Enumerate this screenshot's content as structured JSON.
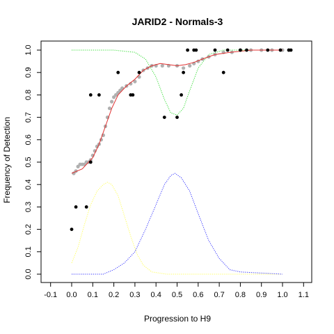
{
  "chart_data": {
    "type": "scatter",
    "title": "JARID2 - Normals-3",
    "xlabel": "Progression to H9",
    "ylabel": "Frequency of Detection",
    "xlim": [
      -0.15,
      1.15
    ],
    "ylim": [
      -0.04,
      1.04
    ],
    "x_ticks": [
      "-0.1",
      "0.0",
      "0.1",
      "0.2",
      "0.3",
      "0.4",
      "0.5",
      "0.6",
      "0.7",
      "0.8",
      "0.9",
      "1.0",
      "1.1"
    ],
    "y_ticks": [
      "0.0",
      "0.1",
      "0.2",
      "0.3",
      "0.4",
      "0.5",
      "0.6",
      "0.7",
      "0.8",
      "0.9",
      "1.0"
    ],
    "grid": false,
    "colors": {
      "observed_points": "#000000",
      "smoothed_points": "#b0b0b0",
      "fit_line": "#e03030",
      "green_curve": "#33dd33",
      "yellow_curve": "#ffff55",
      "blue_curve": "#3333ff"
    },
    "series": [
      {
        "style": "black points",
        "points": [
          [
            0.0,
            0.2
          ],
          [
            0.02,
            0.3
          ],
          [
            0.07,
            0.3
          ],
          [
            0.09,
            0.8
          ],
          [
            0.13,
            0.8
          ],
          [
            0.22,
            0.9
          ],
          [
            0.28,
            0.8
          ],
          [
            0.29,
            0.8
          ],
          [
            0.32,
            0.9
          ],
          [
            0.44,
            0.7
          ],
          [
            0.5,
            0.7
          ],
          [
            0.52,
            0.8
          ],
          [
            0.53,
            0.9
          ],
          [
            0.55,
            1.0
          ],
          [
            0.58,
            1.0
          ],
          [
            0.59,
            1.0
          ],
          [
            0.68,
            1.0
          ],
          [
            0.72,
            0.9
          ],
          [
            0.74,
            1.0
          ],
          [
            0.8,
            1.0
          ],
          [
            0.83,
            1.0
          ],
          [
            0.93,
            1.0
          ],
          [
            0.99,
            1.0
          ],
          [
            1.03,
            1.0
          ],
          [
            1.04,
            1.0
          ],
          [
            0.09,
            0.5
          ]
        ]
      },
      {
        "style": "grey points",
        "points": [
          [
            0.01,
            0.45
          ],
          [
            0.02,
            0.46
          ],
          [
            0.03,
            0.48
          ],
          [
            0.04,
            0.49
          ],
          [
            0.05,
            0.49
          ],
          [
            0.06,
            0.49
          ],
          [
            0.07,
            0.5
          ],
          [
            0.08,
            0.5
          ],
          [
            0.09,
            0.51
          ],
          [
            0.1,
            0.53
          ],
          [
            0.11,
            0.55
          ],
          [
            0.12,
            0.57
          ],
          [
            0.13,
            0.58
          ],
          [
            0.14,
            0.6
          ],
          [
            0.15,
            0.62
          ],
          [
            0.16,
            0.66
          ],
          [
            0.17,
            0.7
          ],
          [
            0.18,
            0.74
          ],
          [
            0.19,
            0.77
          ],
          [
            0.2,
            0.79
          ],
          [
            0.21,
            0.8
          ],
          [
            0.22,
            0.81
          ],
          [
            0.23,
            0.82
          ],
          [
            0.24,
            0.83
          ],
          [
            0.26,
            0.84
          ],
          [
            0.28,
            0.85
          ],
          [
            0.3,
            0.86
          ],
          [
            0.32,
            0.88
          ],
          [
            0.34,
            0.91
          ],
          [
            0.36,
            0.92
          ],
          [
            0.38,
            0.93
          ],
          [
            0.4,
            0.93
          ],
          [
            0.43,
            0.93
          ],
          [
            0.46,
            0.93
          ],
          [
            0.5,
            0.93
          ],
          [
            0.53,
            0.92
          ],
          [
            0.56,
            0.93
          ],
          [
            0.58,
            0.94
          ],
          [
            0.6,
            0.95
          ],
          [
            0.62,
            0.96
          ],
          [
            0.65,
            0.97
          ],
          [
            0.68,
            0.98
          ],
          [
            0.72,
            0.99
          ],
          [
            0.76,
            0.99
          ],
          [
            0.8,
            1.0
          ],
          [
            0.85,
            1.0
          ],
          [
            0.9,
            1.0
          ],
          [
            0.95,
            1.0
          ],
          [
            1.0,
            1.0
          ],
          [
            1.03,
            1.0
          ]
        ]
      },
      {
        "style": "red line",
        "points": [
          [
            0.0,
            0.45
          ],
          [
            0.05,
            0.47
          ],
          [
            0.1,
            0.52
          ],
          [
            0.13,
            0.58
          ],
          [
            0.16,
            0.66
          ],
          [
            0.19,
            0.74
          ],
          [
            0.22,
            0.8
          ],
          [
            0.26,
            0.84
          ],
          [
            0.3,
            0.87
          ],
          [
            0.34,
            0.91
          ],
          [
            0.38,
            0.93
          ],
          [
            0.42,
            0.94
          ],
          [
            0.46,
            0.935
          ],
          [
            0.5,
            0.93
          ],
          [
            0.54,
            0.935
          ],
          [
            0.58,
            0.945
          ],
          [
            0.62,
            0.96
          ],
          [
            0.68,
            0.98
          ],
          [
            0.75,
            0.99
          ],
          [
            0.85,
            1.0
          ],
          [
            1.0,
            1.0
          ]
        ]
      },
      {
        "style": "green dotted",
        "points": [
          [
            0.0,
            1.0
          ],
          [
            0.2,
            1.0
          ],
          [
            0.3,
            0.99
          ],
          [
            0.35,
            0.96
          ],
          [
            0.4,
            0.88
          ],
          [
            0.44,
            0.78
          ],
          [
            0.47,
            0.72
          ],
          [
            0.5,
            0.71
          ],
          [
            0.53,
            0.74
          ],
          [
            0.56,
            0.82
          ],
          [
            0.6,
            0.92
          ],
          [
            0.65,
            0.98
          ],
          [
            0.72,
            1.0
          ],
          [
            1.0,
            1.0
          ]
        ]
      },
      {
        "style": "yellow dotted",
        "points": [
          [
            0.0,
            0.05
          ],
          [
            0.03,
            0.12
          ],
          [
            0.06,
            0.22
          ],
          [
            0.09,
            0.31
          ],
          [
            0.12,
            0.37
          ],
          [
            0.15,
            0.4
          ],
          [
            0.17,
            0.41
          ],
          [
            0.19,
            0.4
          ],
          [
            0.22,
            0.35
          ],
          [
            0.25,
            0.26
          ],
          [
            0.28,
            0.17
          ],
          [
            0.31,
            0.09
          ],
          [
            0.34,
            0.04
          ],
          [
            0.38,
            0.01
          ],
          [
            0.45,
            0.0
          ],
          [
            1.0,
            0.0
          ]
        ]
      },
      {
        "style": "blue dotted",
        "points": [
          [
            0.0,
            0.0
          ],
          [
            0.15,
            0.0
          ],
          [
            0.2,
            0.02
          ],
          [
            0.25,
            0.05
          ],
          [
            0.3,
            0.1
          ],
          [
            0.35,
            0.2
          ],
          [
            0.4,
            0.31
          ],
          [
            0.44,
            0.4
          ],
          [
            0.47,
            0.44
          ],
          [
            0.49,
            0.45
          ],
          [
            0.52,
            0.43
          ],
          [
            0.56,
            0.37
          ],
          [
            0.6,
            0.27
          ],
          [
            0.65,
            0.15
          ],
          [
            0.7,
            0.07
          ],
          [
            0.75,
            0.02
          ],
          [
            0.8,
            0.01
          ],
          [
            1.0,
            0.0
          ]
        ]
      }
    ]
  }
}
